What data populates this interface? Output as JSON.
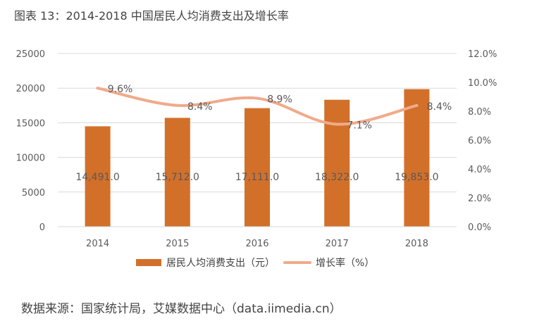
{
  "title": "图表 13：2014-2018 中国居民人均消费支出及增长率",
  "source": "数据来源：国家统计局，艾媒数据中心（data.iimedia.cn）",
  "colors": {
    "bar": "#D2702A",
    "line": "#F0AA8A",
    "grid": "#D9D9D9",
    "text": "#5A5A5A"
  },
  "chart_data": {
    "type": "bar",
    "categories": [
      "2014",
      "2015",
      "2016",
      "2017",
      "2018"
    ],
    "series": [
      {
        "name": "居民人均消费支出（元）",
        "type": "bar",
        "axis": "left",
        "values": [
          14491.0,
          15712.0,
          17111.0,
          18322.0,
          19853.0
        ],
        "labels": [
          "14,491.0",
          "15,712.0",
          "17,111.0",
          "18,322.0",
          "19,853.0"
        ]
      },
      {
        "name": "增长率（%）",
        "type": "line",
        "axis": "right",
        "values": [
          9.6,
          8.4,
          8.9,
          7.1,
          8.4
        ],
        "labels": [
          "9.6%",
          "8.4%",
          "8.9%",
          "7.1%",
          "8.4%"
        ]
      }
    ],
    "y_left": {
      "lim": [
        0,
        25000
      ],
      "ticks": [
        "0",
        "5000",
        "10000",
        "15000",
        "20000",
        "25000"
      ]
    },
    "y_right": {
      "lim": [
        0,
        12
      ],
      "ticks": [
        "0.0%",
        "2.0%",
        "4.0%",
        "6.0%",
        "8.0%",
        "10.0%",
        "12.0%"
      ]
    },
    "grid": true,
    "legend": "bottom"
  }
}
